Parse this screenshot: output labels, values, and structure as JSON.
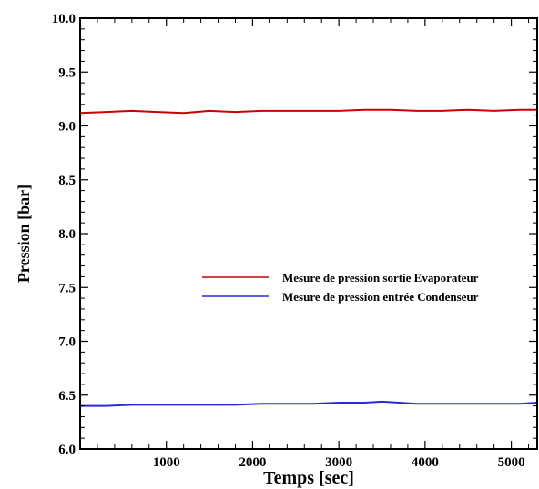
{
  "chart_data": {
    "type": "line",
    "xlabel": "Temps [sec]",
    "ylabel": "Pression  [bar]",
    "xlim": [
      0,
      5300
    ],
    "ylim": [
      6.0,
      10.0
    ],
    "x_ticks": [
      1000,
      2000,
      3000,
      4000,
      5000
    ],
    "x_tick_labels": [
      "1000",
      "2000",
      "3000",
      "4000",
      "5000"
    ],
    "y_ticks": [
      6.0,
      6.5,
      7.0,
      7.5,
      8.0,
      8.5,
      9.0,
      9.5,
      10.0
    ],
    "y_tick_labels": [
      "6.0",
      "6.5",
      "7.0",
      "7.5",
      "8.0",
      "8.5",
      "9.0",
      "9.5",
      "10.0"
    ],
    "grid": false,
    "legend_position": "center-right",
    "series": [
      {
        "name": "Mesure de pression sortie Evaporateur",
        "color": "#cc0000",
        "x": [
          0,
          300,
          600,
          900,
          1200,
          1500,
          1800,
          2100,
          2400,
          2700,
          3000,
          3300,
          3600,
          3900,
          4200,
          4500,
          4800,
          5100,
          5300
        ],
        "y": [
          9.12,
          9.13,
          9.14,
          9.13,
          9.12,
          9.14,
          9.13,
          9.14,
          9.14,
          9.14,
          9.14,
          9.15,
          9.15,
          9.14,
          9.14,
          9.15,
          9.14,
          9.15,
          9.15
        ]
      },
      {
        "name": "Mesure de pression entrée Condenseur",
        "color": "#2a2ad6",
        "x": [
          0,
          300,
          600,
          900,
          1200,
          1500,
          1800,
          2100,
          2400,
          2700,
          3000,
          3300,
          3500,
          3700,
          3900,
          4200,
          4500,
          4800,
          5100,
          5300
        ],
        "y": [
          6.4,
          6.4,
          6.41,
          6.41,
          6.41,
          6.41,
          6.41,
          6.42,
          6.42,
          6.42,
          6.43,
          6.43,
          6.44,
          6.43,
          6.42,
          6.42,
          6.42,
          6.42,
          6.42,
          6.43
        ]
      }
    ]
  }
}
